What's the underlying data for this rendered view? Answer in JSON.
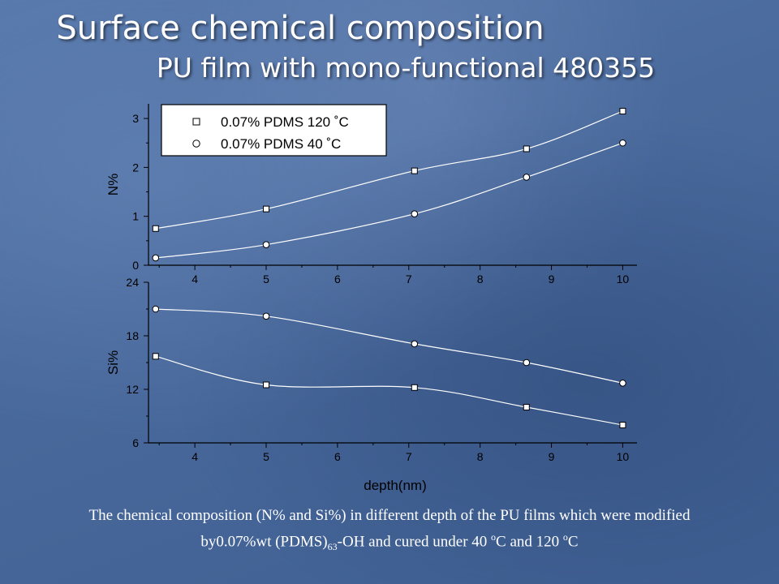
{
  "title": "Surface chemical composition",
  "subtitle": "PU film with mono-functional 480355",
  "chart_data": [
    {
      "type": "line",
      "ylabel": "N%",
      "xlabel": "",
      "xlim": [
        3.35,
        10.2
      ],
      "ylim": [
        0,
        3.3
      ],
      "xticks": [
        "4",
        "5",
        "6",
        "7",
        "8",
        "9",
        "10"
      ],
      "yticks": [
        "0",
        "1",
        "2",
        "3"
      ],
      "legend_position": "top-left",
      "series": [
        {
          "name": "0.07% PDMS 120 ˚C",
          "marker": "square",
          "x": [
            3.45,
            5.0,
            7.08,
            8.65,
            10.0
          ],
          "y": [
            0.75,
            1.15,
            1.93,
            2.38,
            3.15
          ]
        },
        {
          "name": "0.07% PDMS 40 ˚C",
          "marker": "circle",
          "x": [
            3.45,
            5.0,
            7.08,
            8.65,
            10.0
          ],
          "y": [
            0.15,
            0.42,
            1.05,
            1.8,
            2.5
          ]
        }
      ]
    },
    {
      "type": "line",
      "ylabel": "Si%",
      "xlabel": "depth(nm)",
      "xlim": [
        3.35,
        10.2
      ],
      "ylim": [
        6,
        24
      ],
      "xticks": [
        "4",
        "5",
        "6",
        "7",
        "8",
        "9",
        "10"
      ],
      "yticks": [
        "6",
        "12",
        "18",
        "24"
      ],
      "series": [
        {
          "name": "0.07% PDMS 120 ˚C",
          "marker": "square",
          "x": [
            3.45,
            5.0,
            7.08,
            8.65,
            10.0
          ],
          "y": [
            15.7,
            12.5,
            12.2,
            10.0,
            8.0
          ]
        },
        {
          "name": "0.07% PDMS 40 ˚C",
          "marker": "circle",
          "x": [
            3.45,
            5.0,
            7.08,
            8.65,
            10.0
          ],
          "y": [
            21.0,
            20.2,
            17.1,
            15.0,
            12.7
          ]
        }
      ]
    }
  ],
  "caption": {
    "part1": "The chemical composition (N% and Si%) in different depth of the PU films which were modified by0.07%wt (PDMS)",
    "sub": "63",
    "part2": "-OH and cured under 40 ",
    "sup1": "o",
    "part3": "C and 120 ",
    "sup2": "o",
    "part4": "C"
  }
}
